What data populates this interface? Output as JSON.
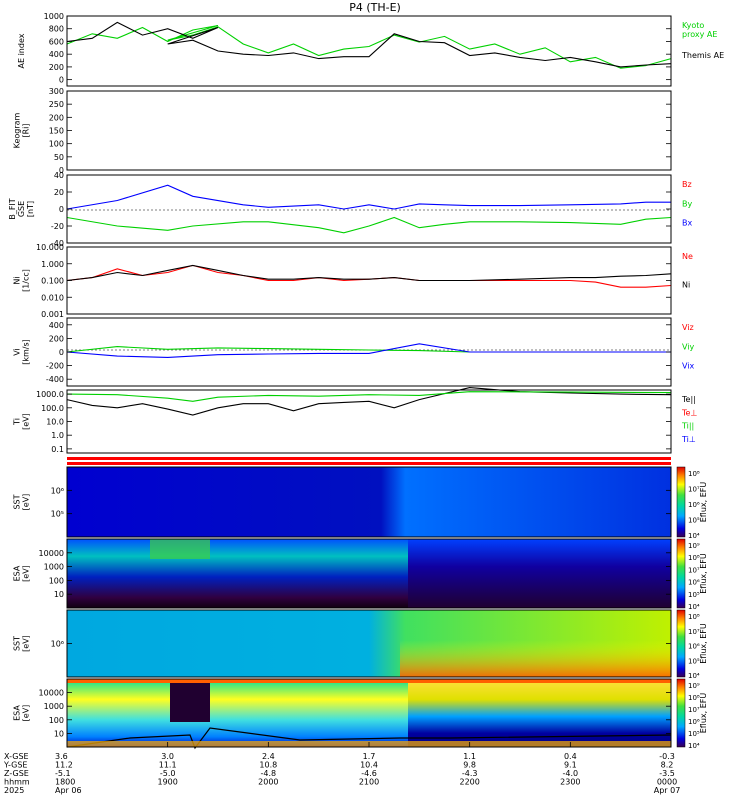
{
  "title": "P4 (TH-E)",
  "colors": {
    "black": "#000000",
    "green": "#00d000",
    "red": "#ff0000",
    "blue": "#0000ff"
  },
  "chart_data": [
    {
      "id": "ae",
      "type": "line",
      "ylabel": [
        "AE index"
      ],
      "ylim": [
        -100,
        1000
      ],
      "log": false,
      "yticks": [
        "1000",
        "800",
        "600",
        "400",
        "200",
        "0"
      ],
      "yticks_values": [
        1000,
        800,
        600,
        400,
        200,
        0
      ],
      "series": [
        {
          "name": "Kyoto",
          "name2": "proxy AE",
          "color": "#00d000",
          "x": [
            1800,
            1815,
            1830,
            1845,
            1860,
            1875,
            1890,
            1900,
            1915,
            1930,
            1945,
            2000,
            2015,
            2030,
            2045,
            2100,
            2115,
            2130,
            2145,
            2200,
            2215,
            2230,
            2245,
            2300,
            2315,
            2330,
            2345,
            2400
          ],
          "values": [
            560,
            720,
            650,
            820,
            600,
            780,
            850,
            620,
            700,
            830,
            560,
            420,
            560,
            380,
            480,
            520,
            700,
            590,
            680,
            480,
            560,
            400,
            500,
            280,
            350,
            180,
            220,
            330
          ]
        },
        {
          "name": "Themis AE",
          "color": "#000000",
          "x": [
            1800,
            1815,
            1830,
            1845,
            1860,
            1875,
            1890,
            1900,
            1915,
            1930,
            1945,
            2000,
            2015,
            2030,
            2045,
            2100,
            2115,
            2130,
            2145,
            2200,
            2215,
            2230,
            2245,
            2300,
            2315,
            2330,
            2345,
            2400
          ],
          "values": [
            600,
            650,
            900,
            700,
            800,
            650,
            820,
            560,
            620,
            450,
            400,
            380,
            420,
            330,
            360,
            360,
            720,
            600,
            580,
            380,
            420,
            350,
            300,
            350,
            280,
            200,
            230,
            250
          ]
        }
      ]
    },
    {
      "id": "keo",
      "type": "line",
      "ylabel": [
        "Keogram",
        "[Ri]"
      ],
      "ylim": [
        0,
        300
      ],
      "log": false,
      "yticks": [
        "300",
        "250",
        "200",
        "150",
        "100",
        "50",
        "0"
      ],
      "yticks_values": [
        300,
        250,
        200,
        150,
        100,
        50,
        0
      ],
      "series": []
    },
    {
      "id": "bfield",
      "type": "line",
      "ylabel": [
        "B_FIT",
        "GSE",
        "[nT]"
      ],
      "ylim": [
        -40,
        40
      ],
      "log": false,
      "yticks": [
        "40",
        "20",
        "0",
        "-20",
        "-40"
      ],
      "yticks_values": [
        40,
        20,
        0,
        -20,
        -40
      ],
      "series": [
        {
          "name": "Bz",
          "color": "#ff0000",
          "x": [],
          "values": []
        },
        {
          "name": "By",
          "color": "#00d000",
          "x": [
            1800,
            1830,
            1900,
            1915,
            1945,
            2000,
            2030,
            2045,
            2100,
            2115,
            2130,
            2145,
            2200,
            2230,
            2300,
            2330,
            2345,
            2400
          ],
          "values": [
            -10,
            -20,
            -25,
            -20,
            -15,
            -15,
            -22,
            -28,
            -20,
            -10,
            -22,
            -18,
            -15,
            -15,
            -16,
            -18,
            -12,
            -10
          ]
        },
        {
          "name": "Bx",
          "color": "#0000ff",
          "x": [
            1800,
            1830,
            1900,
            1915,
            1945,
            2000,
            2030,
            2045,
            2100,
            2115,
            2130,
            2145,
            2200,
            2230,
            2300,
            2330,
            2345,
            2400
          ],
          "values": [
            0,
            10,
            28,
            15,
            5,
            2,
            5,
            0,
            5,
            0,
            6,
            5,
            4,
            4,
            5,
            6,
            8,
            8
          ]
        }
      ]
    },
    {
      "id": "density",
      "type": "line",
      "ylabel": [
        "Ni",
        "[1/cc]"
      ],
      "ylim": [
        0.001,
        10
      ],
      "log": true,
      "yticks": [
        "10.000",
        "1.000",
        "0.100",
        "0.010",
        "0.001"
      ],
      "yticks_values": [
        10,
        1,
        0.1,
        0.01,
        0.001
      ],
      "series": [
        {
          "name": "Ne",
          "color": "#ff0000",
          "x": [
            1800,
            1815,
            1830,
            1845,
            1900,
            1915,
            1930,
            1945,
            2000,
            2015,
            2030,
            2045,
            2100,
            2115,
            2130,
            2200,
            2230,
            2300,
            2315,
            2330,
            2345,
            2400
          ],
          "values": [
            0.1,
            0.15,
            0.5,
            0.2,
            0.3,
            0.8,
            0.3,
            0.2,
            0.1,
            0.1,
            0.15,
            0.1,
            0.12,
            0.15,
            0.1,
            0.1,
            0.1,
            0.1,
            0.08,
            0.04,
            0.04,
            0.05
          ]
        },
        {
          "name": "Ni",
          "color": "#000000",
          "x": [
            1800,
            1815,
            1830,
            1845,
            1900,
            1915,
            1930,
            1945,
            2000,
            2015,
            2030,
            2045,
            2100,
            2115,
            2130,
            2200,
            2230,
            2300,
            2315,
            2330,
            2345,
            2400
          ],
          "values": [
            0.1,
            0.15,
            0.3,
            0.2,
            0.4,
            0.8,
            0.4,
            0.2,
            0.12,
            0.12,
            0.15,
            0.12,
            0.12,
            0.15,
            0.1,
            0.1,
            0.12,
            0.15,
            0.15,
            0.18,
            0.2,
            0.25
          ]
        }
      ]
    },
    {
      "id": "velocity",
      "type": "line",
      "ylabel": [
        "Vi",
        "[km/s]"
      ],
      "ylim": [
        -500,
        500
      ],
      "log": false,
      "yticks": [
        "400",
        "200",
        "0",
        "-200",
        "-400"
      ],
      "yticks_values": [
        400,
        200,
        0,
        -200,
        -400
      ],
      "series": [
        {
          "name": "Viz",
          "color": "#ff0000",
          "x": [],
          "values": []
        },
        {
          "name": "Viy",
          "color": "#00d000",
          "x": [
            1800,
            1830,
            1900,
            1930,
            2000,
            2030,
            2100,
            2130,
            2200,
            2300,
            2400
          ],
          "values": [
            0,
            80,
            40,
            60,
            50,
            40,
            30,
            20,
            0,
            0,
            0
          ]
        },
        {
          "name": "Vix",
          "color": "#0000ff",
          "x": [
            1800,
            1830,
            1900,
            1930,
            2000,
            2030,
            2100,
            2130,
            2200,
            2300,
            2400
          ],
          "values": [
            0,
            -60,
            -80,
            -40,
            -30,
            -20,
            -20,
            120,
            0,
            0,
            0
          ]
        }
      ]
    },
    {
      "id": "temperature",
      "type": "line",
      "ylabel": [
        "Ti",
        "[eV]"
      ],
      "ylim": [
        0.05,
        2000
      ],
      "log": true,
      "yticks": [
        "1000.0",
        "100.0",
        "10.0",
        "1.0",
        "0.1"
      ],
      "yticks_values": [
        1000,
        100,
        10,
        1,
        0.1
      ],
      "series": [
        {
          "name": "Te||",
          "color": "#000000",
          "x": [
            1800,
            1815,
            1830,
            1845,
            1900,
            1915,
            1930,
            1945,
            2000,
            2015,
            2030,
            2045,
            2100,
            2115,
            2130,
            2200,
            2230,
            2300,
            2330,
            2400
          ],
          "values": [
            400,
            150,
            100,
            200,
            80,
            30,
            100,
            200,
            200,
            60,
            200,
            250,
            300,
            100,
            400,
            3000,
            1500,
            1200,
            1000,
            900
          ]
        },
        {
          "name": "Te⊥",
          "color": "#ff0000",
          "x": [],
          "values": []
        },
        {
          "name": "Ti||",
          "color": "#00d000",
          "x": [
            1800,
            1830,
            1900,
            1915,
            1930,
            2000,
            2030,
            2100,
            2130,
            2200,
            2300,
            2400
          ],
          "values": [
            1000,
            900,
            500,
            300,
            600,
            800,
            700,
            900,
            800,
            1500,
            1400,
            1300
          ]
        },
        {
          "name": "Ti⊥",
          "color": "#0000ff",
          "x": [],
          "values": []
        }
      ]
    },
    {
      "id": "sst-e",
      "type": "heatmap",
      "ylabel": [
        "SST",
        "[eV]"
      ],
      "yticks": [
        "10⁶",
        "10⁵"
      ],
      "yticks_values": [
        1000000,
        100000
      ],
      "colorbar_ticks": [
        "10⁸",
        "10⁷",
        "10⁶",
        "10⁵",
        "10⁴"
      ],
      "colorbar_label": "Eflux, EFU"
    },
    {
      "id": "esa-e",
      "type": "heatmap",
      "ylabel": [
        "ESA",
        "[eV]"
      ],
      "yticks": [
        "10000",
        "1000",
        "100",
        "10"
      ],
      "yticks_values": [
        10000,
        1000,
        100,
        10
      ],
      "colorbar_ticks": [
        "10⁹",
        "10⁸",
        "10⁷",
        "10⁶",
        "10⁵",
        "10⁴"
      ],
      "colorbar_label": "Eflux, EFU"
    },
    {
      "id": "sst-i",
      "type": "heatmap",
      "ylabel": [
        "SST",
        "[eV]"
      ],
      "yticks": [
        "10⁶"
      ],
      "yticks_values": [
        1000000
      ],
      "colorbar_ticks": [
        "10⁸",
        "10⁷",
        "10⁶",
        "10⁵",
        "10⁴"
      ],
      "colorbar_label": "Eflux, EFU"
    },
    {
      "id": "esa-i",
      "type": "heatmap",
      "ylabel": [
        "ESA",
        "[eV]"
      ],
      "yticks": [
        "10000",
        "1000",
        "100",
        "10"
      ],
      "yticks_values": [
        10000,
        1000,
        100,
        10
      ],
      "colorbar_ticks": [
        "10⁹",
        "10⁸",
        "10⁷",
        "10⁶",
        "10⁵",
        "10⁴"
      ],
      "colorbar_label": "Eflux, EFU"
    }
  ],
  "time_axis": {
    "row_labels": [
      "X-GSE",
      "Y-GSE",
      "Z-GSE",
      "hhmm",
      "2025"
    ],
    "ticks": [
      {
        "x": 1800,
        "values": [
          "3.6",
          "11.2",
          "-5.1",
          "1800",
          "Apr 06"
        ]
      },
      {
        "x": 1900,
        "values": [
          "3.0",
          "11.1",
          "-5.0",
          "1900",
          ""
        ]
      },
      {
        "x": 2000,
        "values": [
          "2.4",
          "10.8",
          "-4.8",
          "2000",
          ""
        ]
      },
      {
        "x": 2100,
        "values": [
          "1.7",
          "10.4",
          "-4.6",
          "2100",
          ""
        ]
      },
      {
        "x": 2200,
        "values": [
          "1.1",
          "9.8",
          "-4.3",
          "2200",
          ""
        ]
      },
      {
        "x": 2300,
        "values": [
          "0.4",
          "9.1",
          "-4.0",
          "2300",
          ""
        ]
      },
      {
        "x": 2400,
        "values": [
          "-0.3",
          "8.2",
          "-3.5",
          "0000",
          "Apr 07"
        ]
      }
    ]
  }
}
